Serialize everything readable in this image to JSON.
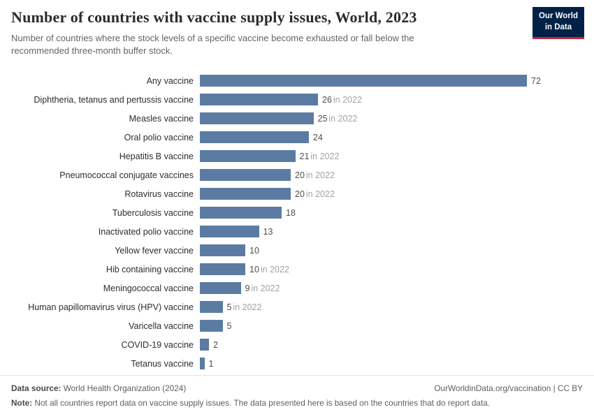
{
  "header": {
    "title": "Number of countries with vaccine supply issues, World, 2023",
    "subtitle": "Number of countries where the stock levels of a specific vaccine become exhausted or fall below the recommended three-month buffer stock."
  },
  "logo": {
    "line1": "Our World",
    "line2": "in Data"
  },
  "chart_data": {
    "type": "bar",
    "orientation": "horizontal",
    "title": "Number of countries with vaccine supply issues, World, 2023",
    "xlabel": "",
    "ylabel": "",
    "xlim": [
      0,
      72
    ],
    "grid": false,
    "legend": false,
    "bar_color": "#5b7ba2",
    "value_color": "#4e4e4e",
    "note_color": "#a2a2a2",
    "categories": [
      "Any vaccine",
      "Diphtheria, tetanus and pertussis vaccine",
      "Measles vaccine",
      "Oral polio vaccine",
      "Hepatitis B vaccine",
      "Pneumococcal conjugate vaccines",
      "Rotavirus vaccine",
      "Tuberculosis vaccine",
      "Inactivated polio vaccine",
      "Yellow fever vaccine",
      "Hib containing vaccine",
      "Meningococcal vaccine",
      "Human papillomavirus virus (HPV) vaccine",
      "Varicella vaccine",
      "COVID-19 vaccine",
      "Tetanus vaccine"
    ],
    "values": [
      72,
      26,
      25,
      24,
      21,
      20,
      20,
      18,
      13,
      10,
      10,
      9,
      5,
      5,
      2,
      1
    ],
    "notes": [
      "",
      "in 2022",
      "in 2022",
      "",
      "in 2022",
      "in 2022",
      "in 2022",
      "",
      "",
      "",
      "in 2022",
      "in 2022",
      "in 2022",
      "",
      "",
      ""
    ]
  },
  "footer": {
    "source_label": "Data source:",
    "source_text": "World Health Organization (2024)",
    "credit": "OurWorldinData.org/vaccination | CC BY",
    "note_label": "Note:",
    "note_text": "Not all countries report data on vaccine supply issues. The data presented here is based on the countries that do report data."
  }
}
